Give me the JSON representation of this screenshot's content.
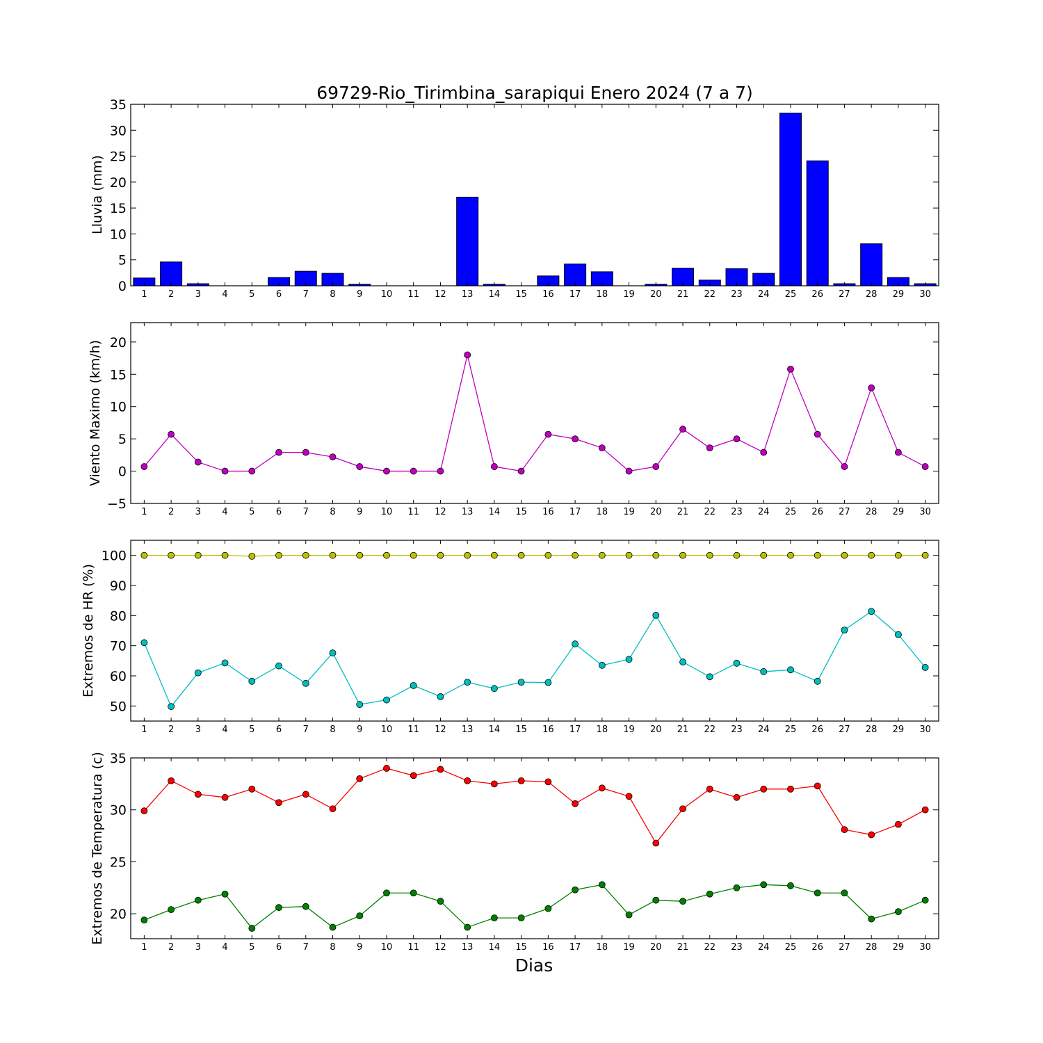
{
  "figure": {
    "title": "69729-Rio_Tirimbina_sarapiqui Enero 2024  (7 a 7)",
    "xlabel": "Dias"
  },
  "chart_data": [
    {
      "type": "bar",
      "ylabel": "Lluvia (mm)",
      "x": [
        1,
        2,
        3,
        4,
        5,
        6,
        7,
        8,
        9,
        10,
        11,
        12,
        13,
        14,
        15,
        16,
        17,
        18,
        19,
        20,
        21,
        22,
        23,
        24,
        25,
        26,
        27,
        28,
        29,
        30
      ],
      "values": [
        1.5,
        4.6,
        0.4,
        0,
        0,
        1.6,
        2.8,
        2.4,
        0.3,
        0,
        0,
        0,
        17.1,
        0.3,
        0,
        1.9,
        4.2,
        2.7,
        0,
        0.3,
        3.4,
        1.1,
        3.3,
        2.4,
        33.3,
        24.1,
        0.4,
        8.1,
        1.6,
        0.4
      ],
      "ylim": [
        0,
        35
      ],
      "yticks": [
        0,
        5,
        10,
        15,
        20,
        25,
        30,
        35
      ],
      "colors": {
        "bar": "#0000ff",
        "edge": "#000000"
      }
    },
    {
      "type": "line",
      "ylabel": "Viento Maximo (km/h)",
      "x": [
        1,
        2,
        3,
        4,
        5,
        6,
        7,
        8,
        9,
        10,
        11,
        12,
        13,
        14,
        15,
        16,
        17,
        18,
        19,
        20,
        21,
        22,
        23,
        24,
        25,
        26,
        27,
        28,
        29,
        30
      ],
      "series": [
        {
          "values": [
            0.7,
            5.7,
            1.4,
            0,
            0,
            2.9,
            2.9,
            2.2,
            0.7,
            0,
            0,
            0,
            18,
            0.7,
            0,
            5.7,
            5,
            3.6,
            0,
            0.7,
            6.5,
            3.6,
            5,
            2.9,
            15.8,
            5.7,
            0.7,
            12.9,
            2.9,
            0.7
          ],
          "color": "#bf00bf"
        }
      ],
      "ylim": [
        -5,
        23
      ],
      "yticks": [
        -5,
        0,
        5,
        10,
        15,
        20
      ]
    },
    {
      "type": "line",
      "ylabel": "Extremos de HR (%)",
      "x": [
        1,
        2,
        3,
        4,
        5,
        6,
        7,
        8,
        9,
        10,
        11,
        12,
        13,
        14,
        15,
        16,
        17,
        18,
        19,
        20,
        21,
        22,
        23,
        24,
        25,
        26,
        27,
        28,
        29,
        30
      ],
      "series": [
        {
          "values": [
            100,
            100,
            100,
            100,
            99.7,
            100,
            100,
            100,
            100,
            100,
            100,
            100,
            100,
            100,
            100,
            100,
            100,
            100,
            100,
            100,
            100,
            100,
            100,
            100,
            100,
            100,
            100,
            100,
            100,
            100
          ],
          "color": "#bfbf00"
        },
        {
          "values": [
            71,
            49.8,
            61,
            64.3,
            58.2,
            63.3,
            57.5,
            67.6,
            50.5,
            52,
            56.8,
            53.1,
            57.9,
            55.8,
            57.9,
            57.8,
            70.6,
            63.5,
            65.5,
            80.1,
            64.6,
            59.7,
            64.2,
            61.4,
            62,
            58.2,
            75.2,
            81.4,
            73.7,
            62.8
          ],
          "color": "#00bfbf"
        }
      ],
      "ylim": [
        45,
        105
      ],
      "yticks": [
        50,
        60,
        70,
        80,
        90,
        100
      ]
    },
    {
      "type": "line",
      "ylabel": "Extremos de Temperatura (c)",
      "x": [
        1,
        2,
        3,
        4,
        5,
        6,
        7,
        8,
        9,
        10,
        11,
        12,
        13,
        14,
        15,
        16,
        17,
        18,
        19,
        20,
        21,
        22,
        23,
        24,
        25,
        26,
        27,
        28,
        29,
        30
      ],
      "series": [
        {
          "values": [
            29.9,
            32.8,
            31.5,
            31.2,
            32,
            30.7,
            31.5,
            30.1,
            33,
            34,
            33.3,
            33.9,
            32.8,
            32.5,
            32.8,
            32.7,
            30.6,
            32.1,
            31.3,
            26.8,
            30.1,
            32,
            31.2,
            32,
            32,
            32.3,
            28.1,
            27.6,
            28.6,
            30
          ],
          "color": "#ff0000"
        },
        {
          "values": [
            19.4,
            20.4,
            21.3,
            21.9,
            18.6,
            20.6,
            20.7,
            18.7,
            19.8,
            22,
            22,
            21.2,
            18.7,
            19.6,
            19.6,
            20.5,
            22.3,
            22.8,
            19.9,
            21.3,
            21.2,
            21.9,
            22.5,
            22.8,
            22.7,
            22,
            22,
            19.5,
            20.2,
            21.3
          ],
          "color": "#008000"
        }
      ],
      "ylim": [
        17.6,
        35
      ],
      "yticks": [
        20,
        25,
        30,
        35
      ]
    }
  ]
}
